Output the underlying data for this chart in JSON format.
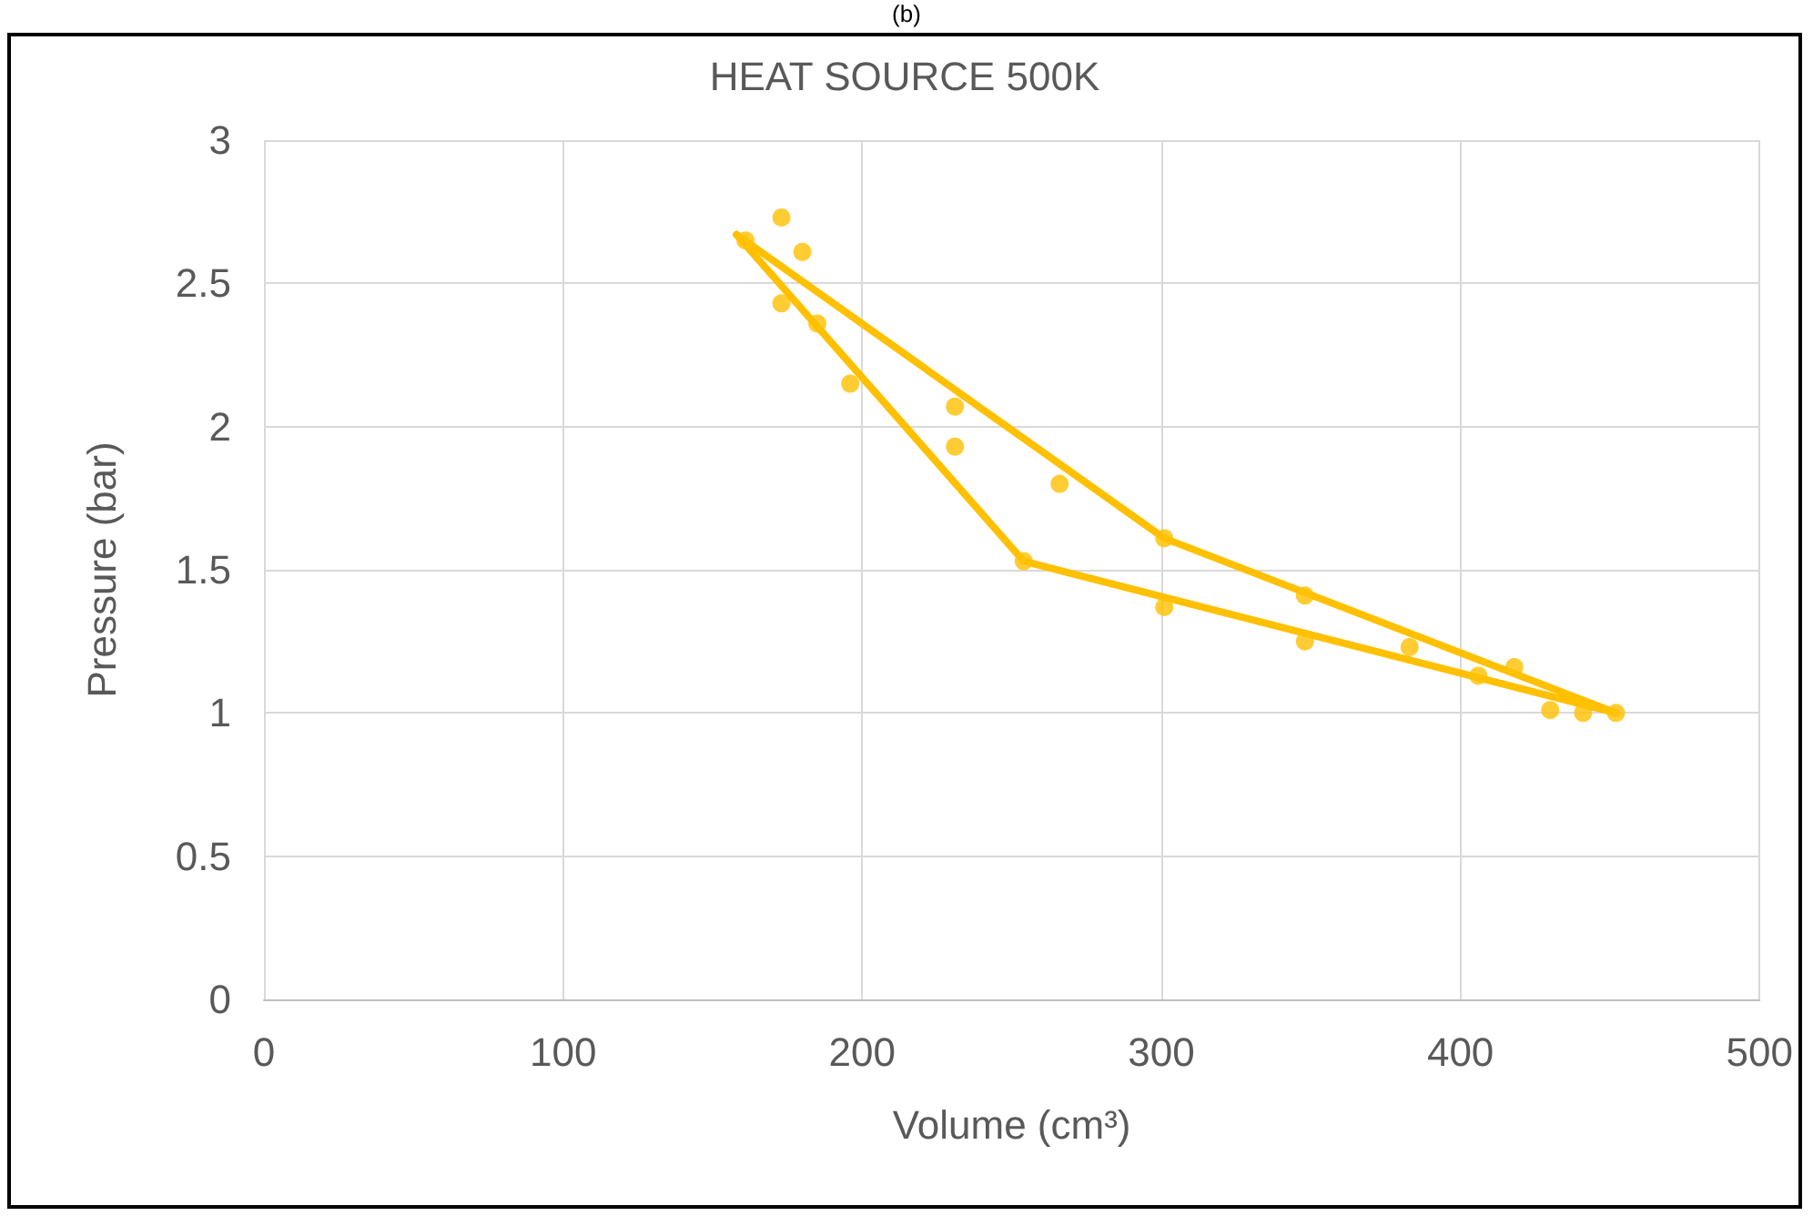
{
  "chart_data": {
    "type": "scatter",
    "title": "HEAT SOURCE 500K",
    "xlabel": "Volume (cm³)",
    "ylabel": "Pressure (bar)",
    "annotations": [
      "(b)"
    ],
    "series": [
      {
        "color": "#ffc000",
        "marker": "circle",
        "x": [
          161,
          173,
          180,
          173,
          185,
          196,
          231,
          231,
          266,
          301,
          301,
          254,
          348,
          348,
          383,
          406,
          418,
          430,
          441,
          452
        ],
        "values": [
          2.65,
          2.73,
          2.61,
          2.43,
          2.36,
          2.15,
          2.07,
          1.93,
          1.8,
          1.61,
          1.37,
          1.53,
          1.41,
          1.25,
          1.23,
          1.13,
          1.16,
          1.01,
          1.0,
          1.0
        ]
      },
      {
        "type": "line",
        "color": "#ffc000",
        "marker": "none",
        "line_style": "solid",
        "x": [
          158,
          254,
          452
        ],
        "values": [
          2.67,
          1.53,
          1.0
        ]
      },
      {
        "type": "line",
        "color": "#ffc000",
        "marker": "none",
        "line_style": "solid",
        "x": [
          158,
          301,
          452
        ],
        "values": [
          2.67,
          1.61,
          1.0
        ]
      }
    ],
    "xlim": [
      0,
      500
    ],
    "xticks": [
      0,
      100,
      200,
      300,
      400,
      500
    ],
    "ylim": [
      0,
      3
    ],
    "yticks": [
      0,
      0.5,
      1,
      1.5,
      2,
      2.5,
      3
    ],
    "grid": true
  }
}
